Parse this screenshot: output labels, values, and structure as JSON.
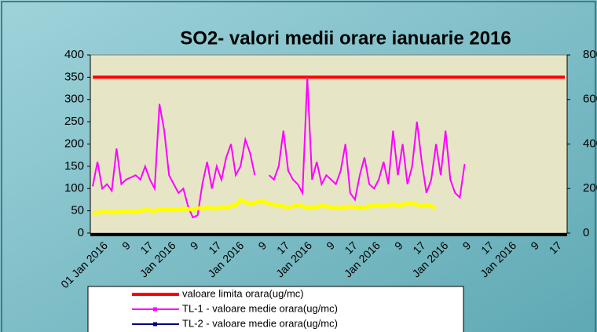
{
  "chart_data": {
    "type": "line",
    "title": "SO2- valori medii orare  ianuarie 2016",
    "xtick_labels": [
      "01 Jan 2016",
      "9",
      "17",
      "Jan 2016",
      "9",
      "17",
      "Jan 2016",
      "9",
      "17",
      "Jan 2016",
      "9",
      "17",
      "Jan 2016",
      "9",
      "17",
      "Jan 2016",
      "9",
      "17",
      "Jan 2016",
      "9",
      "17"
    ],
    "ylim": [
      0,
      400
    ],
    "yticks": [
      0,
      50,
      100,
      150,
      200,
      250,
      300,
      350,
      400
    ],
    "y2lim": [
      0,
      800
    ],
    "y2ticks": [
      0,
      200,
      400,
      600,
      800
    ],
    "grid": false,
    "series": [
      {
        "name": "valoare limita orara(ug/mc)",
        "color": "#ff0000",
        "width": 4,
        "marker": false,
        "values": [
          350,
          350,
          350,
          350,
          350,
          350,
          350,
          350,
          350,
          350,
          350,
          350,
          350,
          350,
          350,
          350,
          350,
          350,
          350,
          350,
          350,
          350,
          350,
          350,
          350,
          350,
          350,
          350,
          350,
          350,
          350,
          350,
          350,
          350,
          350,
          350,
          350,
          350,
          350,
          350,
          350,
          350,
          350,
          350,
          350,
          350,
          350,
          350,
          350,
          350,
          350,
          350,
          350,
          350,
          350,
          350,
          350,
          350,
          350,
          350,
          350,
          350,
          350,
          350,
          350,
          350,
          350,
          350,
          350,
          350,
          350,
          350,
          350,
          350,
          350,
          350,
          350,
          350,
          350,
          350,
          350,
          350,
          350,
          350,
          350,
          350,
          350,
          350,
          350,
          350,
          350,
          350,
          350,
          350,
          350,
          350,
          350,
          350,
          350,
          350
        ]
      },
      {
        "name": "TL-1 - valoare medie orara(ug/mc)",
        "color": "#ff00ff",
        "width": 2,
        "marker": true,
        "values": [
          105,
          160,
          100,
          110,
          95,
          190,
          110,
          120,
          125,
          130,
          120,
          150,
          120,
          100,
          290,
          230,
          130,
          110,
          90,
          100,
          60,
          35,
          40,
          110,
          160,
          100,
          150,
          120,
          170,
          200,
          130,
          150,
          210,
          180,
          130,
          null,
          null,
          130,
          120,
          150,
          230,
          140,
          120,
          110,
          90,
          350,
          120,
          160,
          110,
          130,
          120,
          110,
          140,
          200,
          90,
          75,
          130,
          170,
          110,
          100,
          120,
          160,
          110,
          230,
          130,
          200,
          110,
          150,
          250,
          160,
          90,
          120,
          200,
          130,
          230,
          120,
          90,
          80,
          155,
          null,
          null,
          null,
          null,
          null,
          null,
          null,
          null,
          null,
          null,
          null,
          null,
          null,
          null,
          null,
          null,
          null,
          null,
          null,
          null,
          null
        ]
      },
      {
        "name": "TL-2 - valoare medie orara(ug/mc)",
        "color": "#000080",
        "width": 2,
        "marker": true,
        "axis": "y2",
        "values": [
          null,
          null,
          null,
          null,
          null,
          null,
          null,
          null,
          null,
          null,
          null,
          null,
          null,
          null,
          null,
          null,
          null,
          null,
          null,
          null,
          null,
          null,
          null,
          null,
          null,
          null,
          null,
          null,
          null,
          null,
          null,
          null,
          null,
          null,
          null,
          null,
          null,
          null,
          null,
          null,
          null,
          null,
          null,
          null,
          null,
          null,
          null,
          null,
          null,
          null,
          null,
          null,
          null,
          null,
          null,
          null,
          null,
          null,
          null,
          null,
          null,
          null,
          null,
          null,
          null,
          null,
          null,
          null,
          null,
          null,
          null,
          null,
          null,
          null,
          null,
          null,
          null,
          null,
          null,
          null,
          null,
          null,
          null,
          null,
          null,
          null,
          null,
          null,
          null,
          null,
          null,
          null,
          null,
          null,
          null,
          null,
          null,
          null,
          null,
          null
        ]
      },
      {
        "color": "#ffff00",
        "width": 5,
        "marker": false,
        "values": [
          45,
          46,
          47,
          48,
          46,
          47,
          48,
          50,
          49,
          48,
          50,
          52,
          51,
          50,
          53,
          52,
          54,
          53,
          52,
          55,
          54,
          53,
          56,
          55,
          57,
          56,
          55,
          58,
          57,
          60,
          62,
          75,
          70,
          65,
          68,
          72,
          70,
          66,
          64,
          62,
          60,
          58,
          60,
          62,
          60,
          58,
          57,
          59,
          61,
          60,
          58,
          57,
          56,
          58,
          60,
          59,
          58,
          57,
          60,
          61,
          62,
          60,
          63,
          65,
          62,
          64,
          66,
          68,
          64,
          62,
          63,
          60,
          58,
          null,
          null,
          null,
          null,
          null,
          null,
          null,
          null,
          null,
          null,
          null,
          null,
          null,
          null,
          null,
          null,
          null,
          null,
          null,
          null,
          null,
          null,
          null,
          null,
          null,
          null,
          null
        ]
      }
    ]
  }
}
